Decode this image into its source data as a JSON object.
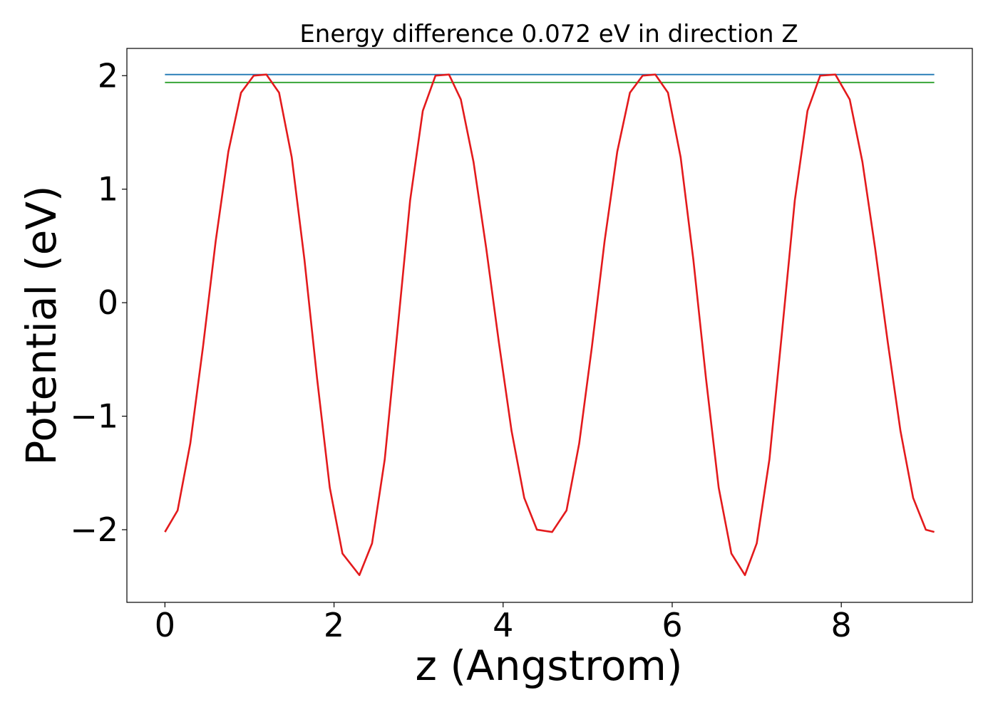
{
  "chart_data": {
    "type": "line",
    "title": "Energy difference 0.072 eV in direction Z",
    "xlabel": "z (Angstrom)",
    "ylabel": "Potential (eV)",
    "xlim": [
      -0.45,
      9.55
    ],
    "ylim": [
      -2.64,
      2.24
    ],
    "grid": false,
    "legend": "none",
    "xticks": [
      {
        "value": 0,
        "label": "0"
      },
      {
        "value": 2,
        "label": "2"
      },
      {
        "value": 4,
        "label": "4"
      },
      {
        "value": 6,
        "label": "6"
      },
      {
        "value": 8,
        "label": "8"
      }
    ],
    "yticks": [
      {
        "value": -2,
        "label": "−2"
      },
      {
        "value": -1,
        "label": "−1"
      },
      {
        "value": 0,
        "label": "0"
      },
      {
        "value": 1,
        "label": "1"
      },
      {
        "value": 2,
        "label": "2"
      }
    ],
    "series": [
      {
        "color": "#1f77b4",
        "style": "horizontal-line",
        "x": [
          0,
          9.1
        ],
        "y": [
          2.01,
          2.01
        ]
      },
      {
        "color": "#2ca02c",
        "style": "horizontal-line",
        "x": [
          0,
          9.1
        ],
        "y": [
          1.94,
          1.94
        ]
      },
      {
        "color": "#e31a1c",
        "style": "curve",
        "x": [
          0,
          0.15,
          0.3,
          0.45,
          0.6,
          0.75,
          0.9,
          1.05,
          1.2,
          1.35,
          1.5,
          1.65,
          1.8,
          1.95,
          2.1,
          2.3,
          2.45,
          2.6,
          2.75,
          2.9,
          3.05,
          3.2,
          3.36,
          3.5,
          3.65,
          3.8,
          3.95,
          4.1,
          4.25,
          4.4,
          4.58,
          4.75,
          4.9,
          5.05,
          5.2,
          5.35,
          5.5,
          5.65,
          5.8,
          5.95,
          6.1,
          6.25,
          6.4,
          6.55,
          6.7,
          6.86,
          7.0,
          7.15,
          7.3,
          7.45,
          7.6,
          7.75,
          7.93,
          8.1,
          8.25,
          8.4,
          8.55,
          8.7,
          8.85,
          9.0,
          9.1
        ],
        "y": [
          -2.02,
          -1.83,
          -1.24,
          -0.39,
          0.54,
          1.33,
          1.85,
          2.0,
          2.01,
          1.85,
          1.28,
          0.38,
          -0.67,
          -1.63,
          -2.21,
          -2.4,
          -2.12,
          -1.38,
          -0.25,
          0.9,
          1.69,
          2.0,
          2.01,
          1.79,
          1.24,
          0.48,
          -0.35,
          -1.13,
          -1.72,
          -2.0,
          -2.02,
          -1.83,
          -1.24,
          -0.39,
          0.54,
          1.33,
          1.85,
          2.0,
          2.01,
          1.85,
          1.28,
          0.38,
          -0.67,
          -1.63,
          -2.21,
          -2.4,
          -2.12,
          -1.38,
          -0.25,
          0.9,
          1.69,
          2.0,
          2.01,
          1.79,
          1.24,
          0.48,
          -0.35,
          -1.13,
          -1.72,
          -2.0,
          -2.02
        ]
      }
    ]
  }
}
